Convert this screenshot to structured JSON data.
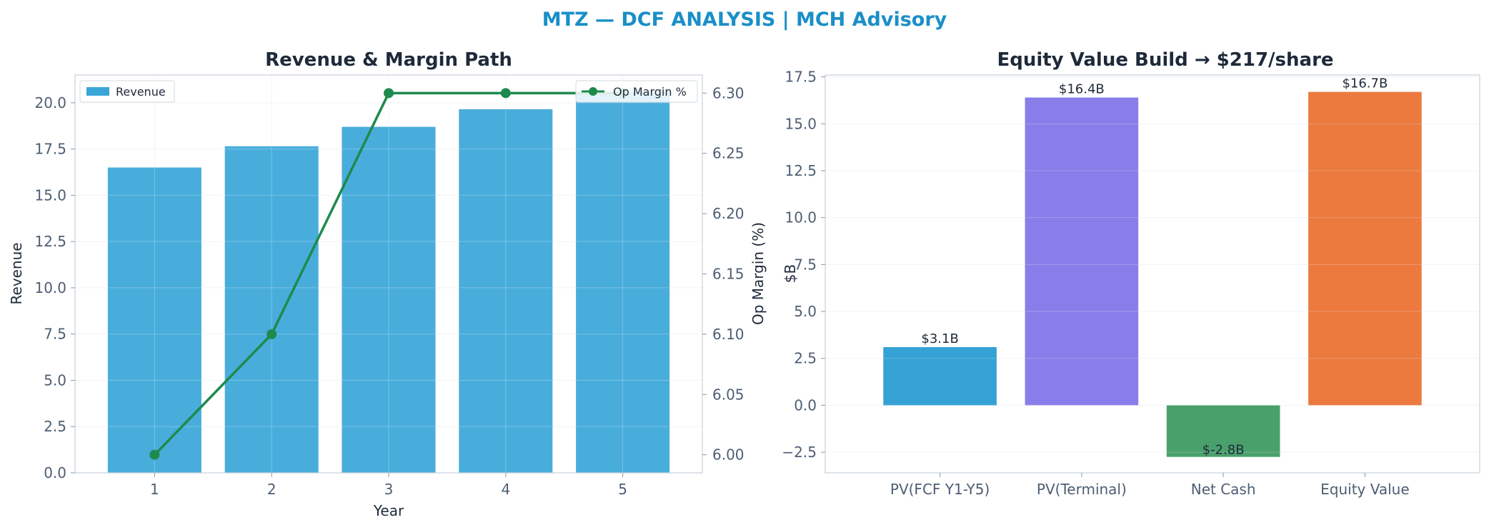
{
  "figure": {
    "suptitle": "MTZ — DCF ANALYSIS | MCH Advisory",
    "suptitle_color": "#1a8fc8"
  },
  "chart_data": [
    {
      "type": "bar",
      "title": "Revenue & Margin Path",
      "xlabel": "Year",
      "ylabel": "Revenue",
      "y2label": "Op Margin (%)",
      "categories": [
        "1",
        "2",
        "3",
        "4",
        "5"
      ],
      "ylim": [
        0,
        21.5
      ],
      "yticks": [
        "0.0",
        "2.5",
        "5.0",
        "7.5",
        "10.0",
        "12.5",
        "15.0",
        "17.5",
        "20.0"
      ],
      "y2lim": [
        5.985,
        6.315
      ],
      "y2ticks": [
        "6.00",
        "6.05",
        "6.10",
        "6.15",
        "6.20",
        "6.25",
        "6.30"
      ],
      "grid": true,
      "series": [
        {
          "name": "Revenue",
          "type": "bar",
          "axis": "left",
          "color": "#3aa6d8",
          "values": [
            16.5,
            17.65,
            18.7,
            19.65,
            20.6
          ]
        },
        {
          "name": "Op Margin %",
          "type": "line",
          "axis": "right",
          "color": "#1e8a4c",
          "values": [
            6.0,
            6.1,
            6.3,
            6.3,
            6.3
          ]
        }
      ],
      "legend": [
        {
          "label": "Revenue",
          "placement": "upper-left"
        },
        {
          "label": "Op Margin %",
          "placement": "upper-right"
        }
      ]
    },
    {
      "type": "bar",
      "title": "Equity Value Build → $217/share",
      "xlabel": "",
      "ylabel": "$B",
      "categories": [
        "PV(FCF Y1-Y5)",
        "PV(Terminal)",
        "Net Cash",
        "Equity Value"
      ],
      "values": [
        3.1,
        16.4,
        -2.75,
        16.7
      ],
      "data_labels": [
        "$3.1B",
        "$16.4B",
        "$-2.8B",
        "$16.7B"
      ],
      "colors": [
        "#35a2d5",
        "#897ee9",
        "#49a06b",
        "#ec7a3f"
      ],
      "ylim": [
        -3.6,
        17.6
      ],
      "yticks": [
        "−2.5",
        "0.0",
        "2.5",
        "5.0",
        "7.5",
        "10.0",
        "12.5",
        "15.0",
        "17.5"
      ],
      "grid": true
    }
  ]
}
